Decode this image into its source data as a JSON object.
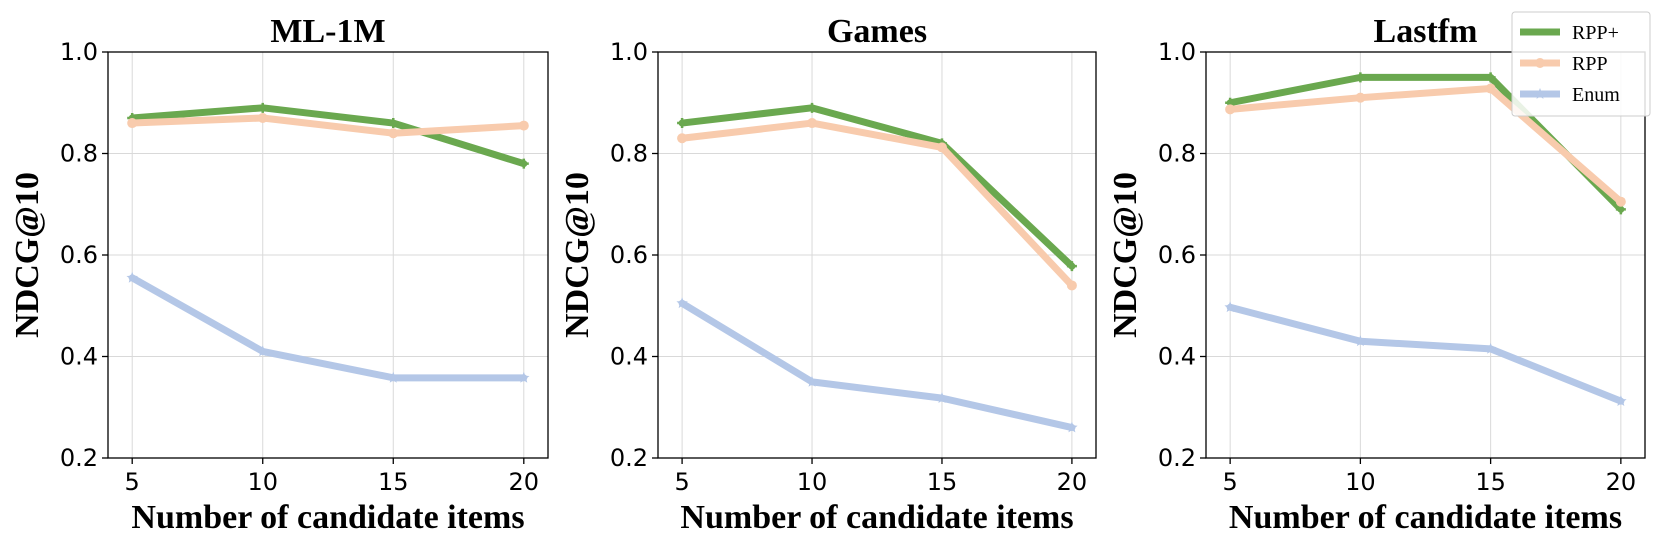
{
  "chart_data": [
    {
      "type": "line",
      "title": "ML-1M",
      "xlabel": "Number of candidate items",
      "ylabel": "NDCG@10",
      "x": [
        5,
        10,
        15,
        20
      ],
      "xticks": [
        "5",
        "10",
        "15",
        "20"
      ],
      "ylim": [
        0.2,
        1.0
      ],
      "yticks": [
        "0.2",
        "0.4",
        "0.6",
        "0.8",
        "1.0"
      ],
      "grid": true,
      "series": [
        {
          "name": "RPP+",
          "values": [
            0.87,
            0.89,
            0.86,
            0.78
          ],
          "color": "#6aa84f",
          "marker": "plus"
        },
        {
          "name": "RPP",
          "values": [
            0.86,
            0.87,
            0.84,
            0.855
          ],
          "color": "#f8cbad",
          "marker": "circle"
        },
        {
          "name": "Enum",
          "values": [
            0.555,
            0.41,
            0.358,
            0.358
          ],
          "color": "#b4c7e7",
          "marker": "star"
        }
      ]
    },
    {
      "type": "line",
      "title": "Games",
      "xlabel": "Number of candidate items",
      "ylabel": "NDCG@10",
      "x": [
        5,
        10,
        15,
        20
      ],
      "xticks": [
        "5",
        "10",
        "15",
        "20"
      ],
      "ylim": [
        0.2,
        1.0
      ],
      "yticks": [
        "0.2",
        "0.4",
        "0.6",
        "0.8",
        "1.0"
      ],
      "grid": true,
      "series": [
        {
          "name": "RPP+",
          "values": [
            0.86,
            0.89,
            0.82,
            0.578
          ],
          "color": "#6aa84f",
          "marker": "plus"
        },
        {
          "name": "RPP",
          "values": [
            0.83,
            0.86,
            0.812,
            0.54
          ],
          "color": "#f8cbad",
          "marker": "circle"
        },
        {
          "name": "Enum",
          "values": [
            0.505,
            0.35,
            0.318,
            0.26
          ],
          "color": "#b4c7e7",
          "marker": "star"
        }
      ]
    },
    {
      "type": "line",
      "title": "Lastfm",
      "xlabel": "Number of candidate items",
      "ylabel": "NDCG@10",
      "x": [
        5,
        10,
        15,
        20
      ],
      "xticks": [
        "5",
        "10",
        "15",
        "20"
      ],
      "ylim": [
        0.2,
        1.0
      ],
      "yticks": [
        "0.2",
        "0.4",
        "0.6",
        "0.8",
        "1.0"
      ],
      "grid": true,
      "legend": {
        "placement": "top-right",
        "entries": [
          "RPP+",
          "RPP",
          "Enum"
        ]
      },
      "series": [
        {
          "name": "RPP+",
          "values": [
            0.9,
            0.95,
            0.95,
            0.69
          ],
          "color": "#6aa84f",
          "marker": "plus"
        },
        {
          "name": "RPP",
          "values": [
            0.887,
            0.91,
            0.928,
            0.705
          ],
          "color": "#f8cbad",
          "marker": "circle"
        },
        {
          "name": "Enum",
          "values": [
            0.497,
            0.43,
            0.415,
            0.312
          ],
          "color": "#b4c7e7",
          "marker": "star"
        }
      ]
    }
  ]
}
